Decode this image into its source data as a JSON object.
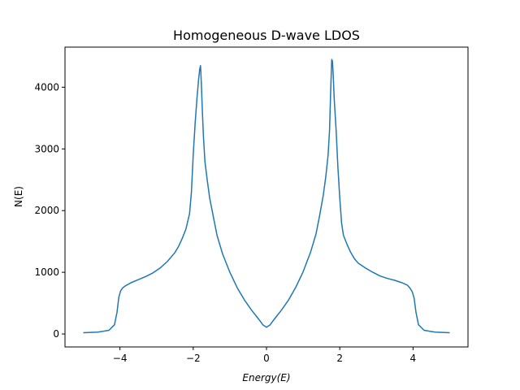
{
  "chart_data": {
    "type": "line",
    "title": "Homogeneous D-wave LDOS",
    "xlabel": "Energy(E)",
    "ylabel": "N(E)",
    "xlim": [
      -5.5,
      5.5
    ],
    "ylim": [
      -210,
      4650
    ],
    "grid": false,
    "xticks": [
      -4,
      -2,
      0,
      2,
      4
    ],
    "yticks": [
      0,
      1000,
      2000,
      3000,
      4000
    ],
    "series": [
      {
        "color": "#1f77b4",
        "x": [
          -5.0,
          -4.6,
          -4.3,
          -4.15,
          -4.08,
          -4.03,
          -3.98,
          -3.92,
          -3.85,
          -3.7,
          -3.5,
          -3.3,
          -3.1,
          -2.9,
          -2.7,
          -2.5,
          -2.4,
          -2.3,
          -2.2,
          -2.1,
          -2.05,
          -2.0,
          -1.95,
          -1.9,
          -1.85,
          -1.82,
          -1.8,
          -1.78,
          -1.75,
          -1.72,
          -1.68,
          -1.62,
          -1.55,
          -1.45,
          -1.35,
          -1.2,
          -1.0,
          -0.8,
          -0.6,
          -0.4,
          -0.2,
          -0.1,
          0.0,
          0.1,
          0.2,
          0.4,
          0.6,
          0.8,
          1.0,
          1.2,
          1.35,
          1.45,
          1.55,
          1.62,
          1.68,
          1.72,
          1.75,
          1.78,
          1.8,
          1.82,
          1.85,
          1.9,
          1.95,
          2.0,
          2.05,
          2.1,
          2.2,
          2.3,
          2.4,
          2.5,
          2.7,
          2.9,
          3.1,
          3.3,
          3.5,
          3.7,
          3.85,
          3.92,
          3.98,
          4.03,
          4.08,
          4.15,
          4.3,
          4.6,
          5.0
        ],
        "y": [
          20,
          30,
          60,
          150,
          350,
          600,
          700,
          750,
          780,
          830,
          880,
          930,
          990,
          1070,
          1180,
          1320,
          1420,
          1550,
          1700,
          1950,
          2300,
          2900,
          3400,
          3800,
          4150,
          4300,
          4350,
          4100,
          3600,
          3200,
          2800,
          2500,
          2200,
          1900,
          1600,
          1300,
          1000,
          750,
          550,
          380,
          230,
          150,
          110,
          150,
          230,
          380,
          550,
          760,
          1010,
          1320,
          1620,
          1920,
          2250,
          2550,
          2900,
          3300,
          3900,
          4450,
          4420,
          4200,
          3800,
          3300,
          2700,
          2200,
          1800,
          1600,
          1450,
          1320,
          1220,
          1150,
          1070,
          1000,
          940,
          900,
          870,
          830,
          790,
          740,
          680,
          580,
          350,
          150,
          60,
          30,
          20
        ]
      }
    ]
  }
}
